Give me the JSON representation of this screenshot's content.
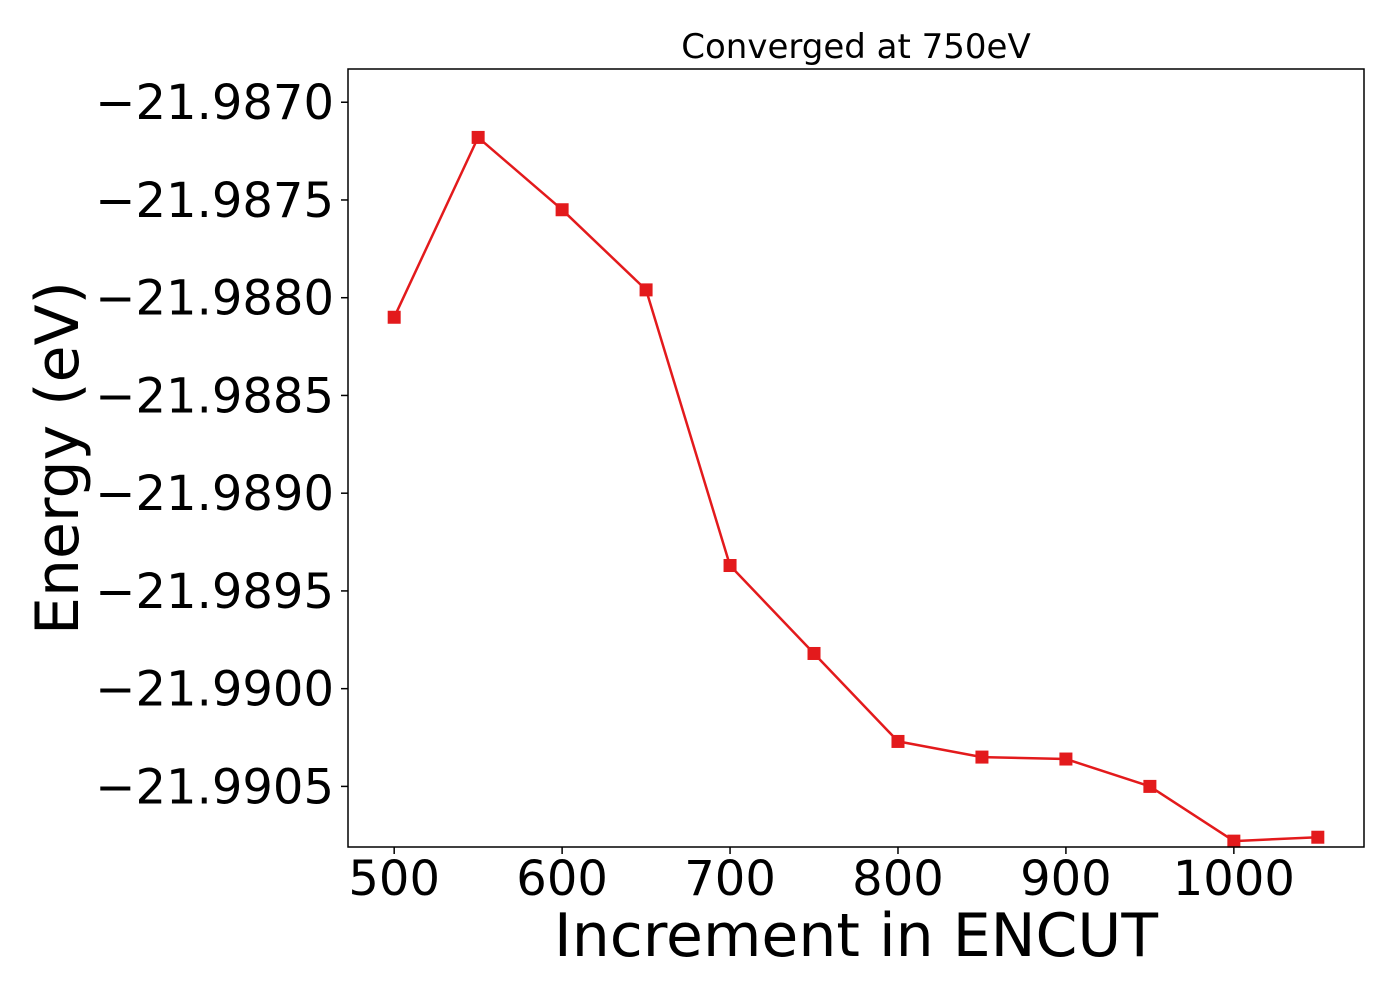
{
  "chart_data": {
    "type": "line",
    "title": "Converged at 750eV",
    "xlabel": "Increment in ENCUT",
    "ylabel": "Energy (eV)",
    "xlim": [
      472.5,
      1077.5
    ],
    "ylim": [
      -21.99081,
      -21.98683
    ],
    "xticks": [
      500,
      600,
      700,
      800,
      900,
      1000
    ],
    "xtick_labels": [
      "500",
      "600",
      "700",
      "800",
      "900",
      "1000"
    ],
    "yticks": [
      -21.987,
      -21.9875,
      -21.988,
      -21.9885,
      -21.989,
      -21.9895,
      -21.99,
      -21.9905
    ],
    "ytick_labels": [
      "−21.9870",
      "−21.9875",
      "−21.9880",
      "−21.9885",
      "−21.9890",
      "−21.9895",
      "−21.9900",
      "−21.9905"
    ],
    "grid": false,
    "series": [
      {
        "color": "#e31a1c",
        "marker": "square",
        "x": [
          500,
          550,
          600,
          650,
          700,
          750,
          800,
          850,
          900,
          950,
          1000,
          1050
        ],
        "y": [
          -21.9881,
          -21.98718,
          -21.98755,
          -21.98796,
          -21.98937,
          -21.98982,
          -21.99027,
          -21.99035,
          -21.99036,
          -21.9905,
          -21.99078,
          -21.99076
        ]
      }
    ]
  }
}
